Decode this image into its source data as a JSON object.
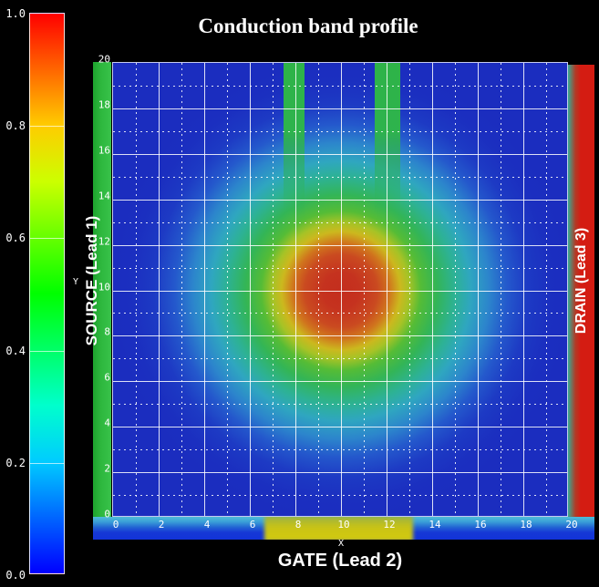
{
  "title": "Conduction band profile",
  "colorbar": {
    "tick_labels": [
      "1.0",
      "0.8",
      "0.6",
      "0.4",
      "0.2",
      "0.0"
    ],
    "top_color": "#ff0000",
    "bottom_color": "#0000ff",
    "colormap": "rainbow (blue-cyan-green-yellow-orange-red)"
  },
  "plot": {
    "x_axis": {
      "label": "X",
      "tick_labels": [
        "0",
        "2",
        "4",
        "6",
        "8",
        "10",
        "12",
        "14",
        "16",
        "18",
        "20"
      ]
    },
    "y_axis": {
      "label": "Y",
      "tick_labels": [
        "0",
        "2",
        "4",
        "6",
        "8",
        "10",
        "12",
        "14",
        "16",
        "18",
        "20"
      ]
    }
  },
  "leads": {
    "source": {
      "label": "SOURCE (Lead 1)",
      "color": "#2eb83e"
    },
    "gate": {
      "label": "GATE (Lead 2)",
      "color": "#d3cb0e"
    },
    "drain": {
      "label": "DRAIN (Lead 3)",
      "color": "#d41c12"
    }
  },
  "chart_data": {
    "type": "heatmap",
    "title": "Conduction band profile",
    "xlabel": "X",
    "ylabel": "Y",
    "x_range": [
      0,
      20
    ],
    "y_range": [
      0,
      20
    ],
    "grid": "solid white lines every 2 units, dotted white lines every 1 unit",
    "colormap": "rainbow (blue low to red high)",
    "colorbar_range": [
      0.0,
      1.0
    ],
    "colorbar_ticks": [
      0.0,
      0.2,
      0.4,
      0.6,
      0.8,
      1.0
    ],
    "field_description": "Radial Gaussian potential bump centered at (10,10), peak value 1.0 (red core radius ~1.7 units), decaying through orange/yellow (~r=2.7), green (~r=4), teal-cyan (~r=5.5), light blue (~r=7) to dark-blue background ~0.07",
    "x_samples": [
      0,
      2,
      4,
      6,
      8,
      10,
      12,
      14,
      16,
      18,
      20
    ],
    "y_samples": [
      20,
      18,
      16,
      14,
      12,
      10,
      8,
      6,
      4,
      2,
      0
    ],
    "values": [
      [
        0.07,
        0.07,
        0.07,
        0.08,
        0.08,
        0.09,
        0.08,
        0.08,
        0.07,
        0.07,
        0.07
      ],
      [
        0.07,
        0.08,
        0.09,
        0.11,
        0.13,
        0.14,
        0.13,
        0.11,
        0.09,
        0.08,
        0.07
      ],
      [
        0.07,
        0.09,
        0.12,
        0.18,
        0.26,
        0.28,
        0.26,
        0.18,
        0.12,
        0.09,
        0.07
      ],
      [
        0.08,
        0.11,
        0.18,
        0.32,
        0.48,
        0.55,
        0.48,
        0.32,
        0.18,
        0.11,
        0.08
      ],
      [
        0.08,
        0.13,
        0.26,
        0.48,
        0.74,
        0.86,
        0.74,
        0.48,
        0.26,
        0.13,
        0.08
      ],
      [
        0.09,
        0.14,
        0.28,
        0.55,
        0.86,
        1.0,
        0.86,
        0.55,
        0.28,
        0.14,
        0.09
      ],
      [
        0.08,
        0.13,
        0.26,
        0.48,
        0.74,
        0.86,
        0.74,
        0.48,
        0.26,
        0.13,
        0.08
      ],
      [
        0.08,
        0.11,
        0.18,
        0.32,
        0.48,
        0.55,
        0.48,
        0.32,
        0.18,
        0.11,
        0.08
      ],
      [
        0.07,
        0.09,
        0.12,
        0.18,
        0.26,
        0.28,
        0.26,
        0.18,
        0.12,
        0.09,
        0.07
      ],
      [
        0.07,
        0.09,
        0.12,
        0.14,
        0.13,
        0.14,
        0.13,
        0.14,
        0.12,
        0.09,
        0.07
      ],
      [
        0.07,
        0.07,
        0.07,
        0.08,
        0.08,
        0.09,
        0.08,
        0.08,
        0.07,
        0.07,
        0.07
      ]
    ],
    "features": [
      {
        "name": "vertical green band (lead stub)",
        "x_range": [
          7.4,
          8.3
        ],
        "y_range": [
          14,
          20
        ],
        "approx_value": 0.45
      },
      {
        "name": "vertical green band (lead stub)",
        "x_range": [
          11.3,
          12.5
        ],
        "y_range": [
          14,
          20
        ],
        "approx_value": 0.45
      },
      {
        "name": "gate segment on bottom edge bar",
        "x_range": [
          6.6,
          13.1
        ],
        "approx_value": 0.78
      }
    ],
    "legend_position": "colorbar on left, ticks 0.0–1.0 every 0.2",
    "leads": [
      {
        "label": "SOURCE (Lead 1)",
        "side": "left",
        "color": "green"
      },
      {
        "label": "GATE (Lead 2)",
        "side": "bottom",
        "color": "yellow"
      },
      {
        "label": "DRAIN (Lead 3)",
        "side": "right",
        "color": "red"
      }
    ]
  }
}
